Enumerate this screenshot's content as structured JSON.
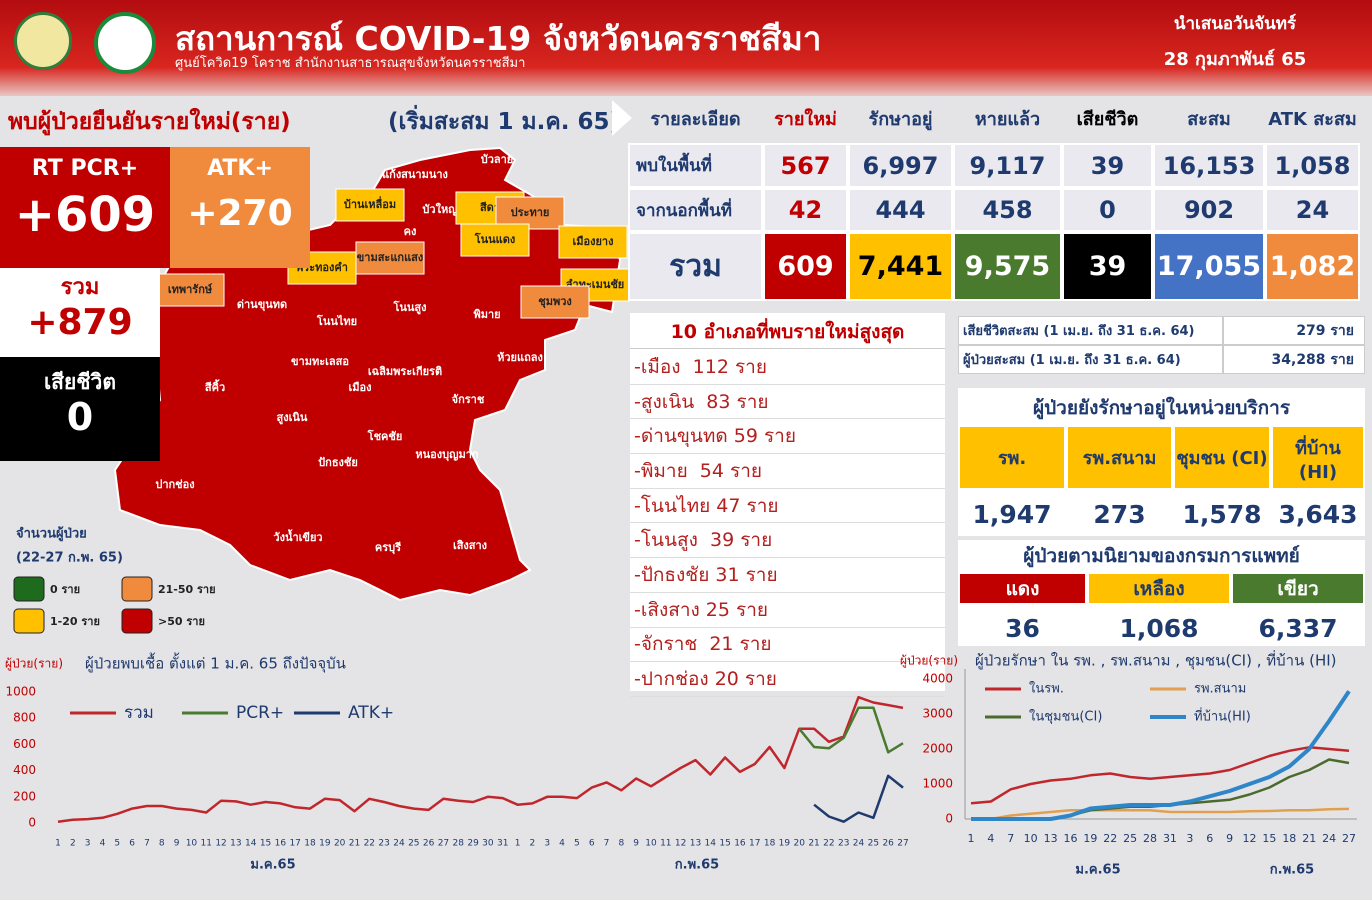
{
  "header": {
    "title": "สถานการณ์ COVID-19 จังหวัดนครราชสีมา",
    "subtitle": "ศูนย์โควิด19 โคราช สำนักงานสาธารณสุขจังหวัดนครราชสีมา",
    "date_line1": "นำเสนอวันจันทร์",
    "date_line2": "28 กุมภาพันธ์ 65"
  },
  "section": {
    "title": "พบผู้ป่วยยืนยันรายใหม่(ราย)",
    "note": "(เริ่มสะสม 1 ม.ค. 65)"
  },
  "summary": {
    "rt_pcr_label": "RT PCR+",
    "rt_pcr_value": "+609",
    "atk_label": "ATK+",
    "atk_value": "+270",
    "total_label": "รวม",
    "total_value": "+879",
    "death_label": "เสียชีวิต",
    "death_value": "0"
  },
  "cases_table": {
    "headers": [
      "รายละเอียด",
      "รายใหม่",
      "รักษาอยู่",
      "หายแล้ว",
      "เสียชีวิต",
      "สะสม",
      "ATK สะสม"
    ],
    "rows": [
      [
        "พบในพื้นที่",
        "567",
        "6,997",
        "9,117",
        "39",
        "16,153",
        "1,058"
      ],
      [
        "จากนอกพื้นที่",
        "42",
        "444",
        "458",
        "0",
        "902",
        "24"
      ],
      [
        "รวม",
        "609",
        "7,441",
        "9,575",
        "39",
        "17,055",
        "1,082"
      ]
    ]
  },
  "top10": {
    "title": "10 อำเภอที่พบรายใหม่สูงสุด",
    "items": [
      "-เมือง  112 ราย",
      "-สูงเนิน  83 ราย",
      "-ด่านขุนทด 59 ราย",
      "-พิมาย  54 ราย",
      "-โนนไทย 47 ราย",
      "-โนนสูง  39 ราย",
      "-ปักธงชัย 31 ราย",
      "-เสิงสาง 25 ราย",
      "-จักราช  21 ราย",
      "-ปากช่อง 20 ราย"
    ]
  },
  "cumulative": {
    "rows": [
      [
        "เสียชีวิตสะสม (1 เม.ย. ถึง 31 ธ.ค. 64)",
        "279 ราย"
      ],
      [
        "ผู้ป่วยสะสม (1 เม.ย. ถึง 31 ธ.ค. 64)",
        "34,288 ราย"
      ]
    ]
  },
  "treatment": {
    "title": "ผู้ป่วยยังรักษาอยู่ในหน่วยบริการ",
    "headers": [
      "รพ.",
      "รพ.สนาม",
      "ชุมชน (CI)",
      "ที่บ้าน (HI)"
    ],
    "values": [
      "1,947",
      "273",
      "1,578",
      "3,643"
    ]
  },
  "severity": {
    "title": "ผู้ป่วยตามนิยามของกรมการแพทย์",
    "headers": [
      "แดง",
      "เหลือง",
      "เขียว"
    ],
    "values": [
      "36",
      "1,068",
      "6,337"
    ]
  },
  "map": {
    "legend_title": "จำนวนผู้ป่วย",
    "legend_period": "(22-27 ก.พ. 65)",
    "legend": [
      {
        "label": "0 ราย",
        "color": "#1e6b1e"
      },
      {
        "label": "21-50 ราย",
        "color": "#f08a3c"
      },
      {
        "label": "1-20 ราย",
        "color": "#ffc000"
      },
      {
        "label": ">50 ราย",
        "color": "#c00000"
      }
    ],
    "districts": [
      {
        "name": "บัวลาย",
        "color": "#c00000"
      },
      {
        "name": "แก้งสนามนาง",
        "color": "#c00000"
      },
      {
        "name": "บ้านเหลื่อม",
        "color": "#ffc000"
      },
      {
        "name": "บัวใหญ่",
        "color": "#c00000"
      },
      {
        "name": "สีดา",
        "color": "#ffc000"
      },
      {
        "name": "ประทาย",
        "color": "#f08a3c"
      },
      {
        "name": "คง",
        "color": "#c00000"
      },
      {
        "name": "โนนแดง",
        "color": "#ffc000"
      },
      {
        "name": "เมืองยาง",
        "color": "#ffc000"
      },
      {
        "name": "พระทองคำ",
        "color": "#ffc000"
      },
      {
        "name": "ขามสะแกแสง",
        "color": "#f08a3c"
      },
      {
        "name": "ลำทะเมนชัย",
        "color": "#ffc000"
      },
      {
        "name": "เทพารักษ์",
        "color": "#f08a3c"
      },
      {
        "name": "ด่านขุนทด",
        "color": "#c00000"
      },
      {
        "name": "ชุมพวง",
        "color": "#f08a3c"
      },
      {
        "name": "โนนสูง",
        "color": "#c00000"
      },
      {
        "name": "พิมาย",
        "color": "#c00000"
      },
      {
        "name": "โนนไทย",
        "color": "#c00000"
      },
      {
        "name": "ห้วยแถลง",
        "color": "#c00000"
      },
      {
        "name": "ขามทะเลสอ",
        "color": "#c00000"
      },
      {
        "name": "เฉลิมพระเกียรติ",
        "color": "#c00000"
      },
      {
        "name": "เมือง",
        "color": "#c00000"
      },
      {
        "name": "สีคิ้ว",
        "color": "#c00000"
      },
      {
        "name": "จักราช",
        "color": "#c00000"
      },
      {
        "name": "สูงเนิน",
        "color": "#c00000"
      },
      {
        "name": "โชคชัย",
        "color": "#c00000"
      },
      {
        "name": "หนองบุญมาก",
        "color": "#c00000"
      },
      {
        "name": "ปักธงชัย",
        "color": "#c00000"
      },
      {
        "name": "ปากช่อง",
        "color": "#c00000"
      },
      {
        "name": "วังน้ำเขียว",
        "color": "#c00000"
      },
      {
        "name": "ครบุรี",
        "color": "#c00000"
      },
      {
        "name": "เสิงสาง",
        "color": "#c00000"
      }
    ]
  },
  "chart_data": [
    {
      "type": "line",
      "title": "ผู้ป่วยพบเชื้อ ตั้งแต่ 1  ม.ค. 65 ถึงปัจจุบัน",
      "y_label": "ผู้ป่วย(ราย)",
      "categories": [
        "1",
        "2",
        "3",
        "4",
        "5",
        "6",
        "7",
        "8",
        "9",
        "10",
        "11",
        "12",
        "13",
        "14",
        "15",
        "16",
        "17",
        "18",
        "19",
        "20",
        "21",
        "22",
        "23",
        "24",
        "25",
        "26",
        "27",
        "28",
        "29",
        "30",
        "31",
        "1",
        "2",
        "3",
        "4",
        "5",
        "6",
        "7",
        "8",
        "9",
        "10",
        "11",
        "12",
        "13",
        "14",
        "15",
        "16",
        "17",
        "18",
        "19",
        "20",
        "21",
        "22",
        "23",
        "24",
        "25",
        "26",
        "27"
      ],
      "x_groups": [
        "ม.ค.65",
        "ก.พ.65"
      ],
      "series": [
        {
          "name": "รวม",
          "color": "#c0272d",
          "values": [
            10,
            25,
            30,
            40,
            70,
            110,
            130,
            130,
            110,
            100,
            80,
            170,
            165,
            140,
            160,
            150,
            120,
            110,
            185,
            175,
            90,
            185,
            160,
            130,
            110,
            100,
            185,
            170,
            160,
            200,
            190,
            140,
            150,
            200,
            200,
            190,
            270,
            310,
            250,
            340,
            280,
            350,
            420,
            480,
            370,
            500,
            390,
            450,
            580,
            420,
            720,
            720,
            620,
            660,
            960,
            920,
            900,
            879
          ]
        },
        {
          "name": "PCR+",
          "color": "#4a7a2e",
          "values": [
            null,
            null,
            null,
            null,
            null,
            null,
            null,
            null,
            null,
            null,
            null,
            null,
            null,
            null,
            null,
            null,
            null,
            null,
            null,
            null,
            null,
            null,
            null,
            null,
            null,
            null,
            null,
            null,
            null,
            null,
            null,
            null,
            null,
            null,
            null,
            null,
            null,
            null,
            null,
            null,
            null,
            null,
            null,
            null,
            null,
            null,
            null,
            null,
            null,
            null,
            720,
            580,
            570,
            650,
            880,
            880,
            540,
            609
          ]
        },
        {
          "name": "ATK+",
          "color": "#1f3a6e",
          "values": [
            null,
            null,
            null,
            null,
            null,
            null,
            null,
            null,
            null,
            null,
            null,
            null,
            null,
            null,
            null,
            null,
            null,
            null,
            null,
            null,
            null,
            null,
            null,
            null,
            null,
            null,
            null,
            null,
            null,
            null,
            null,
            null,
            null,
            null,
            null,
            null,
            null,
            null,
            null,
            null,
            null,
            null,
            null,
            null,
            null,
            null,
            null,
            null,
            null,
            null,
            null,
            140,
            50,
            10,
            80,
            40,
            360,
            270
          ]
        }
      ],
      "ylim": [
        0,
        1000
      ],
      "yticks": [
        0,
        200,
        400,
        600,
        800,
        1000
      ],
      "grid": false,
      "legend": "top-left"
    },
    {
      "type": "line",
      "title": "ผู้ป่วยรักษา ใน รพ. , รพ.สนาม , ชุมชน(CI) , ที่บ้าน (HI)",
      "y_label": "ผู้ป่วย(ราย)",
      "categories": [
        "1",
        "4",
        "7",
        "10",
        "13",
        "16",
        "19",
        "22",
        "25",
        "28",
        "31",
        "3",
        "6",
        "9",
        "12",
        "15",
        "18",
        "21",
        "24",
        "27"
      ],
      "x_groups": [
        "ม.ค.65",
        "ก.พ.65"
      ],
      "series": [
        {
          "name": "ในรพ.",
          "color": "#c0272d",
          "values": [
            450,
            500,
            850,
            1000,
            1100,
            1150,
            1250,
            1300,
            1200,
            1150,
            1200,
            1250,
            1300,
            1400,
            1600,
            1800,
            1950,
            2050,
            2000,
            1950
          ]
        },
        {
          "name": "รพ.สนาม",
          "color": "#e0a050",
          "values": [
            0,
            0,
            100,
            150,
            200,
            250,
            250,
            250,
            250,
            250,
            200,
            200,
            200,
            200,
            220,
            230,
            250,
            250,
            280,
            290
          ]
        },
        {
          "name": "ในชุมชน(CI)",
          "color": "#4a6a2e",
          "values": [
            0,
            0,
            0,
            0,
            0,
            100,
            250,
            300,
            350,
            350,
            400,
            450,
            500,
            550,
            700,
            900,
            1200,
            1400,
            1700,
            1600
          ]
        },
        {
          "name": "ที่บ้าน(HI)",
          "color": "#2e86c8",
          "values": [
            0,
            0,
            0,
            0,
            0,
            100,
            300,
            350,
            400,
            400,
            400,
            500,
            650,
            800,
            1000,
            1200,
            1500,
            2000,
            2800,
            3650
          ]
        }
      ],
      "ylim": [
        0,
        4000
      ],
      "yticks": [
        0,
        1000,
        2000,
        3000,
        4000
      ],
      "grid": false,
      "legend": "top-left"
    }
  ]
}
